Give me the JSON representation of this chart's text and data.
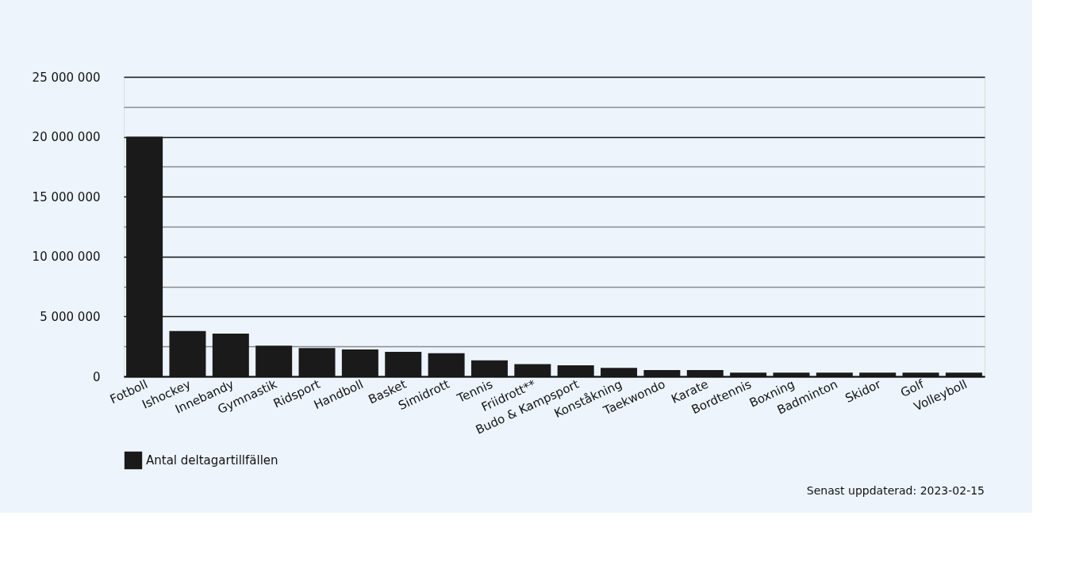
{
  "chart_data": {
    "type": "bar",
    "categories": [
      "Fotboll",
      "Ishockey",
      "Innebandy",
      "Gymnastik",
      "Ridsport",
      "Handboll",
      "Basket",
      "Simidrott",
      "Tennis",
      "Friidrott**",
      "Budo & Kampsport",
      "Konståkning",
      "Taekwondo",
      "Karate",
      "Bordtennis",
      "Boxning",
      "Badminton",
      "Skidor",
      "Golf",
      "Volleyboll"
    ],
    "series": [
      {
        "name": "Antal deltagartillfällen",
        "color": "#1a1a1a",
        "values": [
          20000000,
          3790000,
          3570000,
          2560000,
          2360000,
          2250000,
          2050000,
          1940000,
          1340000,
          1030000,
          930000,
          710000,
          530000,
          530000,
          320000,
          320000,
          320000,
          320000,
          320000,
          320000
        ]
      }
    ],
    "ylim": [
      0,
      25000000
    ],
    "yticks": [
      0,
      {
        "value": 2500000,
        "label": null
      },
      {
        "value": 5000000,
        "label": "5 000 000"
      },
      {
        "value": 7500000,
        "label": null
      },
      {
        "value": 10000000,
        "label": "10 000 000"
      },
      {
        "value": 12500000,
        "label": null
      },
      {
        "value": 15000000,
        "label": "15 000 000"
      },
      {
        "value": 17500000,
        "label": null
      },
      {
        "value": 20000000,
        "label": "20 000 000"
      },
      {
        "value": 22500000,
        "label": null
      },
      {
        "value": 25000000,
        "label": "25 000 000"
      }
    ],
    "grid": "y",
    "legend": "bottom",
    "annotations": [
      "Senast uppdaterad: 2023-02-15"
    ]
  }
}
